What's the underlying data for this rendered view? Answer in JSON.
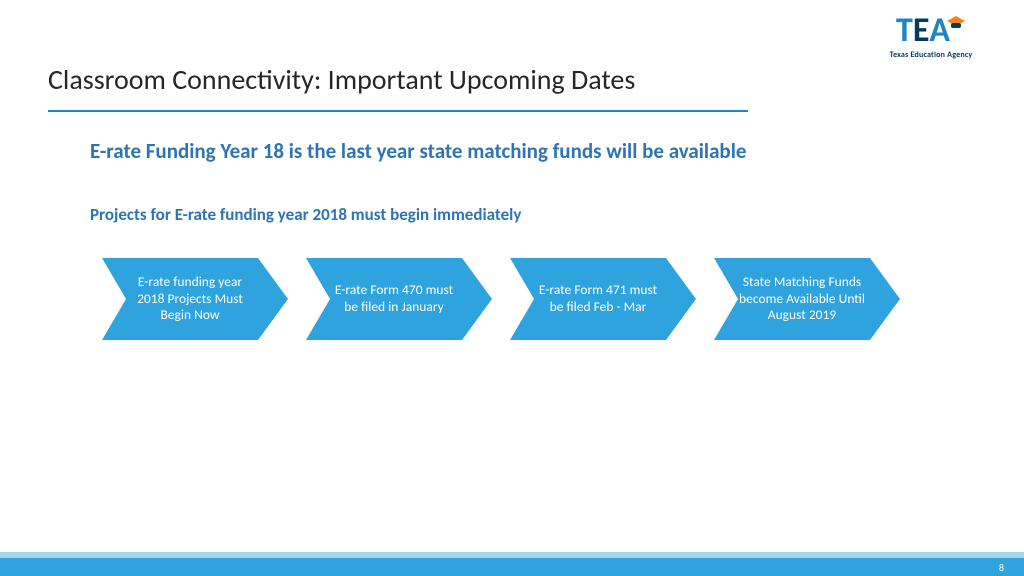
{
  "colors": {
    "brand_blue": "#1f83c6",
    "brand_orange": "#f58220",
    "dark_navy": "#053a5f",
    "title_text": "#262626",
    "accent_text": "#2e74b5",
    "chevron_fill": "#2ea3dd",
    "footer_light": "#a8d4ea",
    "footer_dark": "#2ea3dd",
    "rule": "#1f83c6"
  },
  "logo": {
    "letters": "TEA",
    "tagline": "Texas Education Agency"
  },
  "title": "Classroom Connectivity: Important Upcoming Dates",
  "headline": "E-rate Funding Year 18 is the last year state matching funds will be available",
  "subhead": "Projects for E-rate funding year 2018 must begin immediately",
  "process": {
    "type": "chevron-flow",
    "chevron_shape": {
      "width": 186,
      "height": 82,
      "notch": 24,
      "point": 30
    },
    "item_color": "#2ea3dd",
    "text_color": "#ffffff",
    "font_size": 13.5,
    "items": [
      "E-rate funding year 2018 Projects Must Begin Now",
      "E-rate Form 470 must be filed in January",
      "E-rate Form 471 must be filed Feb - Mar",
      "State Matching Funds become Available Until August 2019"
    ]
  },
  "page_number": "8"
}
